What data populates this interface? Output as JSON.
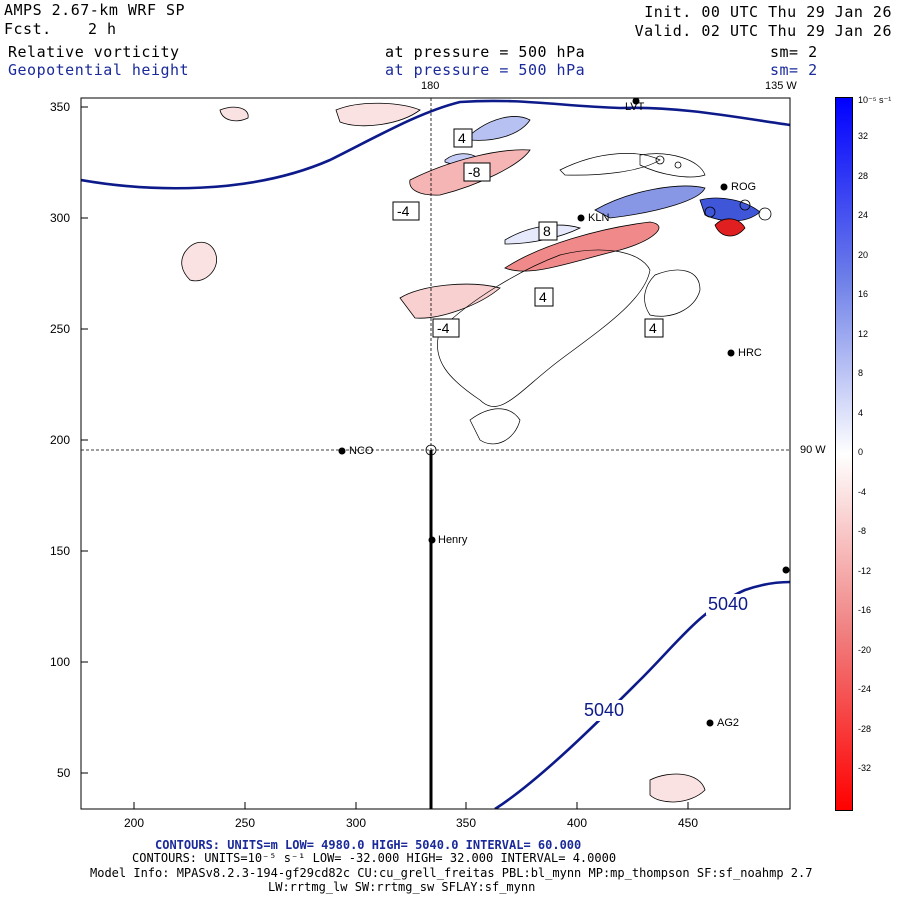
{
  "header": {
    "model": "AMPS 2.67-km WRF SP",
    "forecast_label": "Fcst.",
    "forecast_value": "2 h",
    "init": "Init. 00 UTC Thu 29 Jan 26",
    "valid": "Valid. 02 UTC Thu 29 Jan 26",
    "field1_name": "Relative vorticity",
    "field1_level": "at pressure =  500 hPa",
    "field1_sm": "sm= 2",
    "field2_name": "Geopotential height",
    "field2_level": "at pressure =  500 hPa",
    "field2_sm": "sm= 2"
  },
  "map": {
    "lon_top_180": "180",
    "lon_top_135w": "135 W",
    "lon_right_90w": "90 W",
    "x_ticks": [
      "200",
      "250",
      "300",
      "350",
      "400",
      "450"
    ],
    "y_ticks": [
      "350",
      "300",
      "250",
      "200",
      "150",
      "100",
      "50"
    ],
    "stations": [
      "LVT",
      "ROG",
      "KLN",
      "HRC",
      "NCO",
      "Henry",
      "AG2"
    ],
    "height_labels": [
      "5040",
      "5040"
    ],
    "vort_labels": [
      "4",
      "-8",
      "-4",
      "8",
      "4",
      "-4",
      "4"
    ]
  },
  "colorbar": {
    "unit": "10⁻⁵ s⁻¹",
    "labels": [
      "32",
      "28",
      "24",
      "20",
      "16",
      "12",
      "8",
      "4",
      "0",
      "-4",
      "-8",
      "-12",
      "-16",
      "-20",
      "-24",
      "-28",
      "-32"
    ],
    "positive_color": "#0000ff",
    "negative_color": "#ff0000"
  },
  "footer": {
    "line1": "CONTOURS:  UNITS=m  LOW=  4980.0        HIGH=  5040.0      INTERVAL=   60.000",
    "line2": "CONTOURS:  UNITS=10⁻⁵ s⁻¹  LOW= -32.000       HIGH=  32.000      INTERVAL=   4.0000",
    "line3": "Model Info: MPASv8.2.3-194-gf29cd82c CU:cu_grell_freitas PBL:bl_mynn MP:mp_thompson SF:sf_noahmp 2.7",
    "line4": "LW:rrtmg_lw SW:rrtmg_sw SFLAY:sf_mynn"
  }
}
